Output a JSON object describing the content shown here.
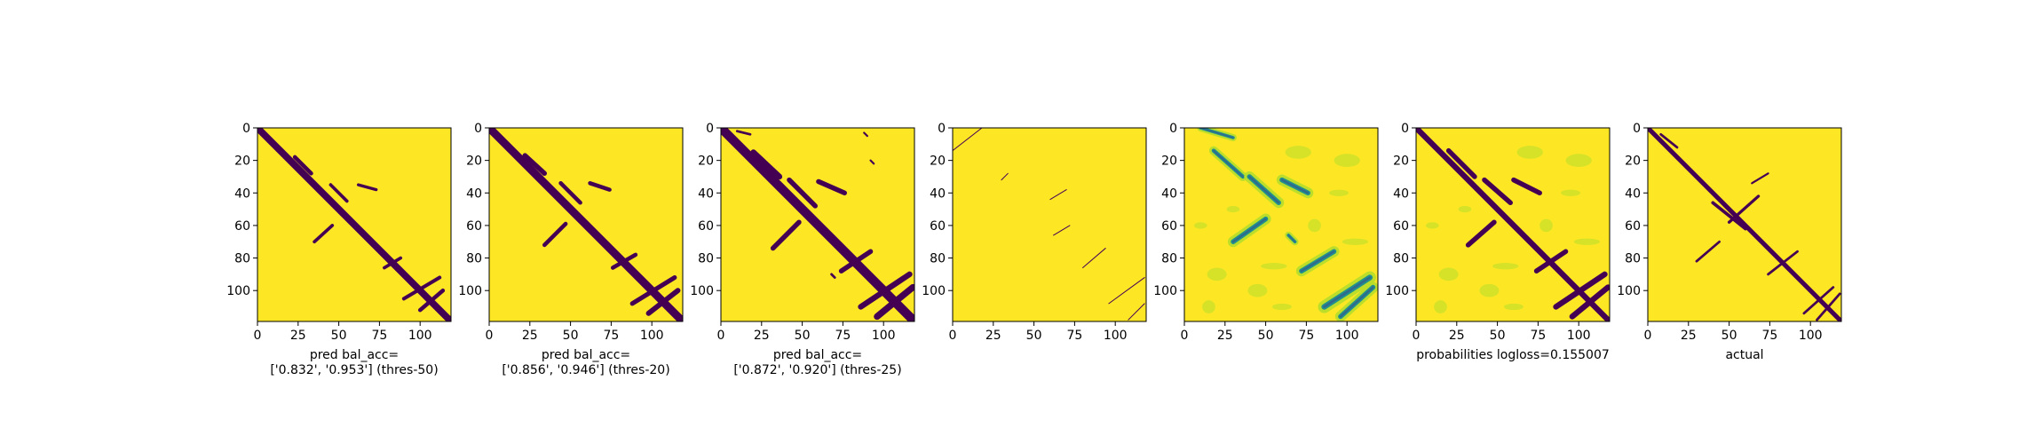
{
  "colors": {
    "contact": "#440154",
    "background": "#fde725",
    "mid_high": "#b5de2b",
    "mid": "#21918c",
    "mid_low": "#31688e",
    "axis": "#000000"
  },
  "chart_data": [
    {
      "type": "heatmap",
      "panel": "threshold-50",
      "xlabel_lines": [
        "pred bal_acc=",
        "['0.832', '0.953'] (thres-50)"
      ],
      "x_ticks": [
        0,
        25,
        50,
        75,
        100
      ],
      "y_ticks": [
        0,
        20,
        40,
        60,
        80,
        100
      ],
      "xlim": [
        0,
        119
      ],
      "ylim": [
        119,
        0
      ],
      "colormap": "viridis",
      "diagonal_band_halfwidth": 3,
      "contact_segments": [
        {
          "from": [
            23,
            18
          ],
          "to": [
            33,
            28
          ],
          "width": 2.5
        },
        {
          "from": [
            45,
            35
          ],
          "to": [
            55,
            45
          ],
          "width": 2.0
        },
        {
          "from": [
            62,
            35
          ],
          "to": [
            73,
            38
          ],
          "width": 1.8
        },
        {
          "from": [
            35,
            70
          ],
          "to": [
            46,
            60
          ],
          "width": 2.0
        },
        {
          "from": [
            78,
            86
          ],
          "to": [
            88,
            80
          ],
          "width": 2.0
        },
        {
          "from": [
            90,
            105
          ],
          "to": [
            112,
            92
          ],
          "width": 2.2
        },
        {
          "from": [
            100,
            112
          ],
          "to": [
            114,
            100
          ],
          "width": 2.5
        }
      ]
    },
    {
      "type": "heatmap",
      "panel": "threshold-20",
      "xlabel_lines": [
        "pred bal_acc=",
        "['0.856', '0.946'] (thres-20)"
      ],
      "x_ticks": [
        0,
        25,
        50,
        75,
        100
      ],
      "y_ticks": [
        0,
        20,
        40,
        60,
        80,
        100
      ],
      "xlim": [
        0,
        119
      ],
      "ylim": [
        119,
        0
      ],
      "colormap": "viridis",
      "diagonal_band_halfwidth": 3.5,
      "contact_segments": [
        {
          "from": [
            22,
            17
          ],
          "to": [
            34,
            28
          ],
          "width": 3.0
        },
        {
          "from": [
            44,
            34
          ],
          "to": [
            56,
            46
          ],
          "width": 2.5
        },
        {
          "from": [
            62,
            34
          ],
          "to": [
            74,
            38
          ],
          "width": 2.5
        },
        {
          "from": [
            34,
            72
          ],
          "to": [
            47,
            59
          ],
          "width": 2.5
        },
        {
          "from": [
            76,
            86
          ],
          "to": [
            90,
            78
          ],
          "width": 2.5
        },
        {
          "from": [
            88,
            108
          ],
          "to": [
            114,
            92
          ],
          "width": 2.8
        },
        {
          "from": [
            98,
            114
          ],
          "to": [
            116,
            100
          ],
          "width": 3.2
        }
      ]
    },
    {
      "type": "heatmap",
      "panel": "threshold-25",
      "xlabel_lines": [
        "pred bal_acc=",
        "['0.872', '0.920'] (thres-25)"
      ],
      "x_ticks": [
        0,
        25,
        50,
        75,
        100
      ],
      "y_ticks": [
        0,
        20,
        40,
        60,
        80,
        100
      ],
      "xlim": [
        0,
        119
      ],
      "ylim": [
        119,
        0
      ],
      "colormap": "viridis",
      "diagonal_band_halfwidth": 4,
      "contact_segments": [
        {
          "from": [
            20,
            15
          ],
          "to": [
            36,
            30
          ],
          "width": 3.5
        },
        {
          "from": [
            42,
            32
          ],
          "to": [
            58,
            48
          ],
          "width": 3.0
        },
        {
          "from": [
            60,
            33
          ],
          "to": [
            76,
            40
          ],
          "width": 3.0
        },
        {
          "from": [
            32,
            74
          ],
          "to": [
            48,
            58
          ],
          "width": 3.0
        },
        {
          "from": [
            74,
            88
          ],
          "to": [
            92,
            76
          ],
          "width": 3.0
        },
        {
          "from": [
            86,
            110
          ],
          "to": [
            116,
            90
          ],
          "width": 3.5
        },
        {
          "from": [
            96,
            116
          ],
          "to": [
            118,
            98
          ],
          "width": 4.0
        },
        {
          "from": [
            10,
            2
          ],
          "to": [
            18,
            4
          ],
          "width": 1.5
        },
        {
          "from": [
            88,
            3
          ],
          "to": [
            90,
            5
          ],
          "width": 1.2
        },
        {
          "from": [
            92,
            20
          ],
          "to": [
            94,
            22
          ],
          "width": 1.2
        },
        {
          "from": [
            68,
            90
          ],
          "to": [
            70,
            92
          ],
          "width": 1.5
        }
      ]
    },
    {
      "type": "heatmap",
      "panel": "thin-lines",
      "xlabel_lines": [],
      "x_ticks": [
        0,
        25,
        50,
        75,
        100
      ],
      "y_ticks": [
        0,
        20,
        40,
        60,
        80,
        100
      ],
      "xlim": [
        0,
        119
      ],
      "ylim": [
        119,
        0
      ],
      "colormap": "viridis",
      "diagonal_band_halfwidth": 0,
      "contact_segments": [
        {
          "from": [
            0,
            14
          ],
          "to": [
            18,
            0
          ],
          "width": 0.5
        },
        {
          "from": [
            30,
            32
          ],
          "to": [
            34,
            28
          ],
          "width": 0.5
        },
        {
          "from": [
            60,
            44
          ],
          "to": [
            70,
            38
          ],
          "width": 0.5
        },
        {
          "from": [
            62,
            66
          ],
          "to": [
            72,
            60
          ],
          "width": 0.5
        },
        {
          "from": [
            80,
            86
          ],
          "to": [
            94,
            74
          ],
          "width": 0.5
        },
        {
          "from": [
            96,
            108
          ],
          "to": [
            118,
            92
          ],
          "width": 0.5
        },
        {
          "from": [
            108,
            118
          ],
          "to": [
            118,
            108
          ],
          "width": 0.5
        }
      ]
    },
    {
      "type": "heatmap",
      "panel": "probabilities",
      "xlabel_lines": [],
      "x_ticks": [
        0,
        25,
        50,
        75,
        100
      ],
      "y_ticks": [
        0,
        20,
        40,
        60,
        80,
        100
      ],
      "xlim": [
        0,
        119
      ],
      "ylim": [
        119,
        0
      ],
      "colormap": "viridis",
      "diagonal_band_halfwidth": 0,
      "contact_segments": [
        {
          "from": [
            18,
            14
          ],
          "to": [
            36,
            30
          ],
          "width": 2.5
        },
        {
          "from": [
            40,
            30
          ],
          "to": [
            58,
            46
          ],
          "width": 3.0
        },
        {
          "from": [
            60,
            32
          ],
          "to": [
            76,
            40
          ],
          "width": 3.0
        },
        {
          "from": [
            30,
            70
          ],
          "to": [
            50,
            56
          ],
          "width": 3.0
        },
        {
          "from": [
            64,
            66
          ],
          "to": [
            68,
            70
          ],
          "width": 2.0
        },
        {
          "from": [
            72,
            88
          ],
          "to": [
            92,
            76
          ],
          "width": 3.0
        },
        {
          "from": [
            86,
            110
          ],
          "to": [
            114,
            92
          ],
          "width": 3.5
        },
        {
          "from": [
            96,
            116
          ],
          "to": [
            116,
            98
          ],
          "width": 3.0
        },
        {
          "from": [
            10,
            0
          ],
          "to": [
            30,
            6
          ],
          "width": 2.0
        }
      ]
    },
    {
      "type": "heatmap",
      "panel": "probabilities-logloss",
      "xlabel_lines": [
        "probabilities logloss=0.155007"
      ],
      "x_ticks": [
        0,
        25,
        50,
        75,
        100
      ],
      "y_ticks": [
        0,
        20,
        40,
        60,
        80,
        100
      ],
      "xlim": [
        0,
        119
      ],
      "ylim": [
        119,
        0
      ],
      "colormap": "viridis",
      "diagonal_band_halfwidth": 2.5,
      "contact_segments": [
        {
          "from": [
            20,
            14
          ],
          "to": [
            36,
            30
          ],
          "width": 3.0
        },
        {
          "from": [
            42,
            32
          ],
          "to": [
            58,
            46
          ],
          "width": 3.0
        },
        {
          "from": [
            60,
            32
          ],
          "to": [
            76,
            40
          ],
          "width": 3.0
        },
        {
          "from": [
            32,
            72
          ],
          "to": [
            48,
            58
          ],
          "width": 3.0
        },
        {
          "from": [
            74,
            88
          ],
          "to": [
            92,
            76
          ],
          "width": 3.0
        },
        {
          "from": [
            86,
            110
          ],
          "to": [
            116,
            90
          ],
          "width": 3.5
        },
        {
          "from": [
            96,
            116
          ],
          "to": [
            118,
            98
          ],
          "width": 3.5
        }
      ]
    },
    {
      "type": "heatmap",
      "panel": "actual",
      "xlabel_lines": [
        "actual"
      ],
      "x_ticks": [
        0,
        25,
        50,
        75,
        100
      ],
      "y_ticks": [
        0,
        20,
        40,
        60,
        80,
        100
      ],
      "xlim": [
        0,
        119
      ],
      "ylim": [
        119,
        0
      ],
      "colormap": "viridis",
      "diagonal_band_halfwidth": 2,
      "contact_segments": [
        {
          "from": [
            8,
            4
          ],
          "to": [
            18,
            12
          ],
          "width": 1.5
        },
        {
          "from": [
            20,
            20
          ],
          "to": [
            30,
            30
          ],
          "width": 1.5
        },
        {
          "from": [
            40,
            46
          ],
          "to": [
            60,
            62
          ],
          "width": 2.0
        },
        {
          "from": [
            64,
            34
          ],
          "to": [
            74,
            28
          ],
          "width": 1.2
        },
        {
          "from": [
            30,
            82
          ],
          "to": [
            44,
            70
          ],
          "width": 1.5
        },
        {
          "from": [
            50,
            58
          ],
          "to": [
            68,
            42
          ],
          "width": 1.8
        },
        {
          "from": [
            74,
            90
          ],
          "to": [
            92,
            76
          ],
          "width": 1.5
        },
        {
          "from": [
            96,
            114
          ],
          "to": [
            114,
            98
          ],
          "width": 1.5
        },
        {
          "from": [
            104,
            118
          ],
          "to": [
            118,
            102
          ],
          "width": 1.5
        }
      ]
    }
  ]
}
